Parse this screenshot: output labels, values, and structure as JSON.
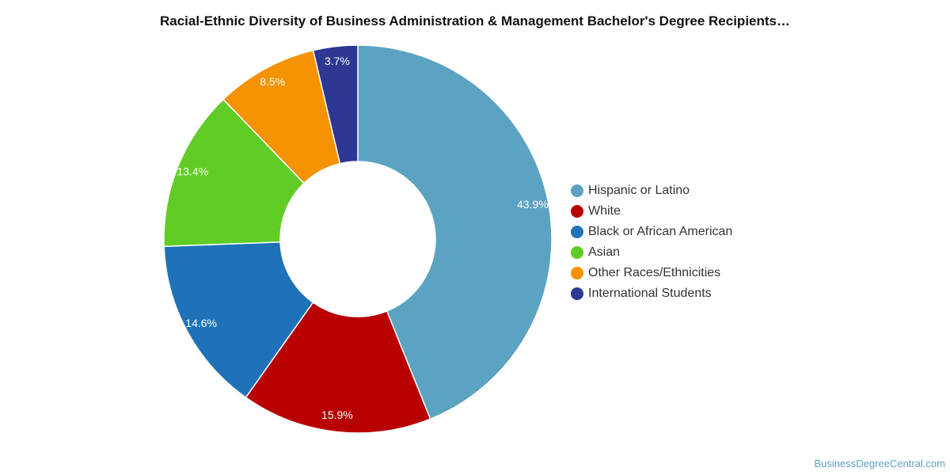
{
  "chart_data": {
    "type": "pie",
    "variant": "donut",
    "title": "Racial-Ethnic Diversity of Business Administration & Management Bachelor's Degree Recipients…",
    "legend_position": "right",
    "categories": [
      "Hispanic or Latino",
      "White",
      "Black or African American",
      "Asian",
      "Other Races/Ethnicities",
      "International Students"
    ],
    "values": [
      43.9,
      15.9,
      14.6,
      13.4,
      8.5,
      3.7
    ],
    "labels": [
      "43.9%",
      "15.9%",
      "14.6%",
      "13.4%",
      "8.5%",
      "3.7%"
    ],
    "colors": [
      "#5ba3c0",
      "#b80000",
      "#1f72b8",
      "#62cc27",
      "#f59200",
      "#2c3892"
    ]
  },
  "footer": {
    "credit": "BusinessDegreeCentral.com"
  }
}
